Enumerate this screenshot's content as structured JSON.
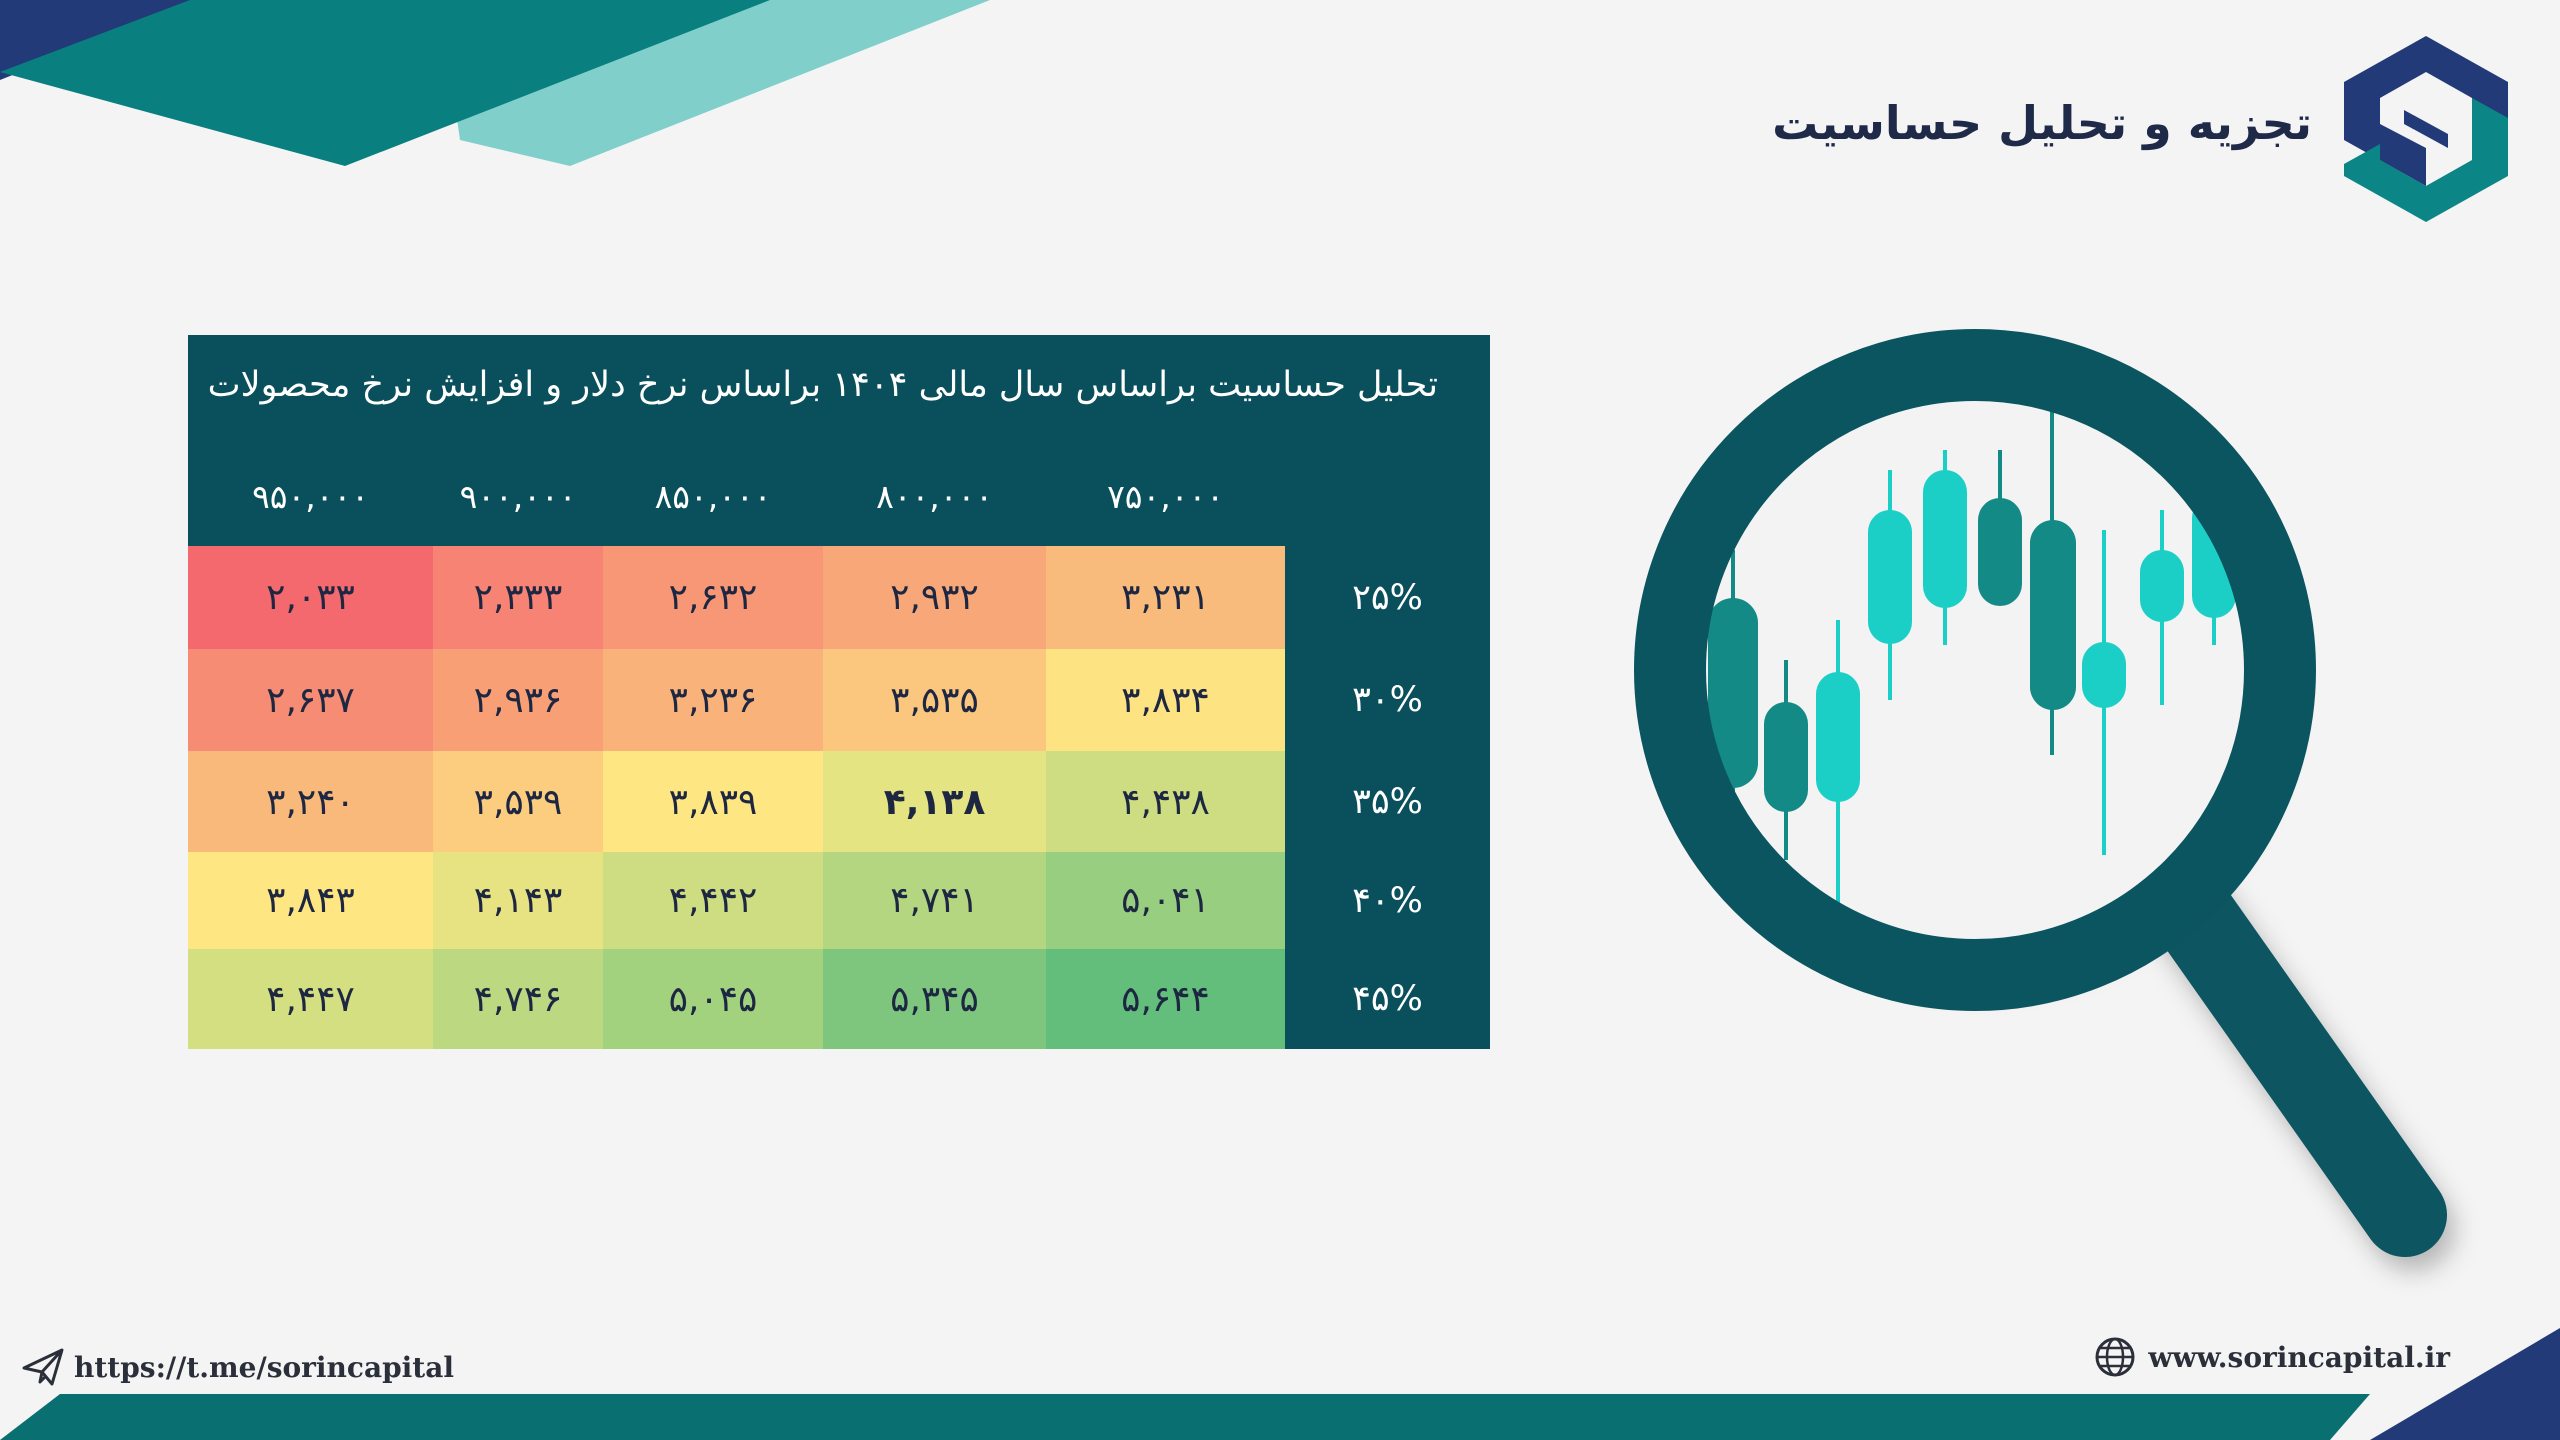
{
  "header": {
    "title": "تجزیه و تحلیل حساسیت"
  },
  "table": {
    "title": "تحلیل حساسیت براساس سال مالی ۱۴۰۴ براساس نرخ دلار و افزایش نرخ محصولات",
    "columns": [
      "۷۵۰,۰۰۰",
      "۸۰۰,۰۰۰",
      "۸۵۰,۰۰۰",
      "۹۰۰,۰۰۰",
      "۹۵۰,۰۰۰"
    ],
    "rows": [
      {
        "label": "۲۵%",
        "values": [
          "۳,۲۳۱",
          "۲,۹۳۲",
          "۲,۶۳۲",
          "۲,۳۳۳",
          "۲,۰۳۳"
        ]
      },
      {
        "label": "۳۰%",
        "values": [
          "۳,۸۳۴",
          "۳,۵۳۵",
          "۳,۲۳۶",
          "۲,۹۳۶",
          "۲,۶۳۷"
        ]
      },
      {
        "label": "۳۵%",
        "values": [
          "۴,۴۳۸",
          "۴,۱۳۸",
          "۳,۸۳۹",
          "۳,۵۳۹",
          "۳,۲۴۰"
        ]
      },
      {
        "label": "۴۰%",
        "values": [
          "۵,۰۴۱",
          "۴,۷۴۱",
          "۴,۴۴۲",
          "۴,۱۴۳",
          "۳,۸۴۳"
        ]
      },
      {
        "label": "۴۵%",
        "values": [
          "۵,۶۴۴",
          "۵,۳۴۵",
          "۵,۰۴۵",
          "۴,۷۴۶",
          "۴,۴۴۷"
        ]
      }
    ],
    "highlight": {
      "row": 2,
      "col": 1
    },
    "cell_colors": [
      [
        "#f8bb7c",
        "#f8a878",
        "#f79775",
        "#f68373",
        "#f3696d"
      ],
      [
        "#fee382",
        "#fbc67d",
        "#f8b27a",
        "#f89f76",
        "#f68c73"
      ],
      [
        "#cedd82",
        "#e5e483",
        "#fee683",
        "#fccd7e",
        "#f9b97b"
      ],
      [
        "#98ce7f",
        "#b5d680",
        "#cedd82",
        "#e7e383",
        "#fee783"
      ],
      [
        "#63be7b",
        "#7ec67d",
        "#a3d27f",
        "#bcd881",
        "#d4df82"
      ]
    ],
    "panel_color": "#0a4f5c"
  },
  "illustration": {
    "icon": "magnifier-candlestick-icon",
    "colors": {
      "frame": "#0b5560",
      "candle_dark": "#138a86",
      "candle_light": "#1ccfc6"
    }
  },
  "footer": {
    "telegram_icon": "paper-plane-icon",
    "telegram": "https://t.me/sorincapital",
    "web_icon": "globe-icon",
    "website": "www.sorincapital.ir"
  },
  "brand": {
    "logo_icon": "sorin-logo-icon",
    "primary": "#233a78",
    "teal": "#0c8586",
    "light_teal": "#7ecfcb"
  }
}
